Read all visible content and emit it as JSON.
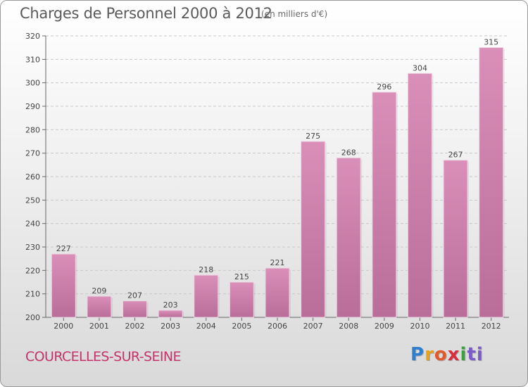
{
  "chart_data": {
    "type": "bar",
    "title": "Charges de Personnel 2000 à 2012",
    "subtitle": "(en milliers d'€)",
    "categories": [
      "2000",
      "2001",
      "2002",
      "2003",
      "2004",
      "2005",
      "2006",
      "2007",
      "2008",
      "2009",
      "2010",
      "2011",
      "2012"
    ],
    "values": [
      227,
      209,
      207,
      203,
      218,
      215,
      221,
      275,
      268,
      296,
      304,
      267,
      315
    ],
    "ylim": [
      200,
      320
    ],
    "yticks": [
      200,
      210,
      220,
      230,
      240,
      250,
      260,
      270,
      280,
      290,
      300,
      310,
      320
    ],
    "grid": true,
    "bar_color": "#d98fb8",
    "bar_color_dark": "#b86e98"
  },
  "commune": "COURCELLES-SUR-SEINE",
  "logo": {
    "letters": [
      "P",
      "r",
      "o",
      "x",
      "i",
      "ti"
    ]
  }
}
